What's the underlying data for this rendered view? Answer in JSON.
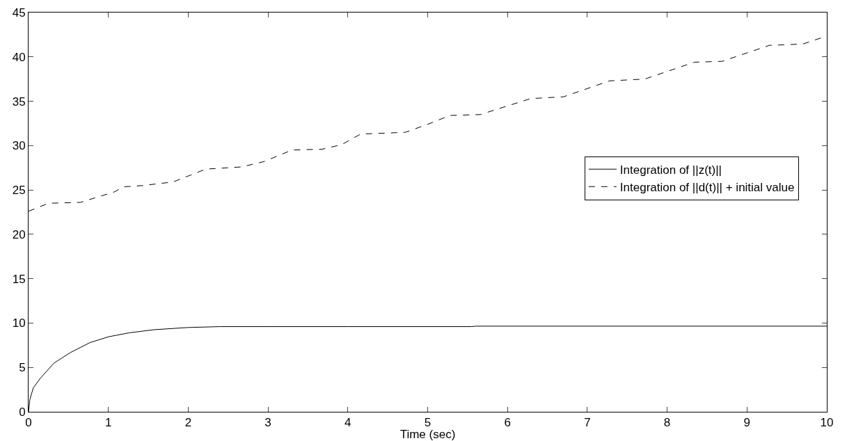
{
  "chart_data": {
    "type": "line",
    "xlabel": "Time (sec)",
    "xlim": [
      0,
      10
    ],
    "xticks": [
      0,
      1,
      2,
      3,
      4,
      5,
      6,
      7,
      8,
      9,
      10
    ],
    "ylim": [
      0,
      45
    ],
    "yticks": [
      0,
      5,
      10,
      15,
      20,
      25,
      30,
      35,
      40,
      45
    ],
    "grid": false,
    "legend": "right",
    "marker": "none",
    "series": [
      {
        "name": "Integration of ||z(t)||",
        "color": "#000000",
        "line_style": "solid",
        "x": [
          0,
          0.017,
          0.06,
          0.15,
          0.32,
          0.53,
          0.77,
          1.0,
          1.26,
          1.57,
          2.0,
          2.4,
          3.0,
          4.0,
          5.55,
          5.6,
          7.0,
          8.5,
          10
        ],
        "values": [
          0,
          1.4,
          2.7,
          3.8,
          5.5,
          6.7,
          7.8,
          8.45,
          8.9,
          9.25,
          9.5,
          9.6,
          9.6,
          9.6,
          9.6,
          9.65,
          9.65,
          9.65,
          9.65
        ]
      },
      {
        "name": "Integration of ||d(t)|| + initial value",
        "color": "#000000",
        "line_style": "dashed",
        "x": [
          0,
          0.25,
          0.65,
          1.08,
          1.19,
          1.43,
          1.81,
          2.22,
          2.67,
          2.95,
          3.3,
          3.68,
          3.92,
          4.16,
          4.72,
          5.0,
          5.28,
          5.66,
          6.29,
          6.7,
          7.28,
          7.72,
          8.34,
          8.69,
          9.28,
          9.7,
          10
        ],
        "values": [
          22.6,
          23.5,
          23.6,
          24.8,
          25.35,
          25.5,
          25.9,
          27.35,
          27.6,
          28.2,
          29.5,
          29.6,
          30.1,
          31.3,
          31.5,
          32.4,
          33.4,
          33.5,
          35.3,
          35.5,
          37.3,
          37.5,
          39.4,
          39.5,
          41.3,
          41.45,
          42.35
        ]
      }
    ]
  }
}
